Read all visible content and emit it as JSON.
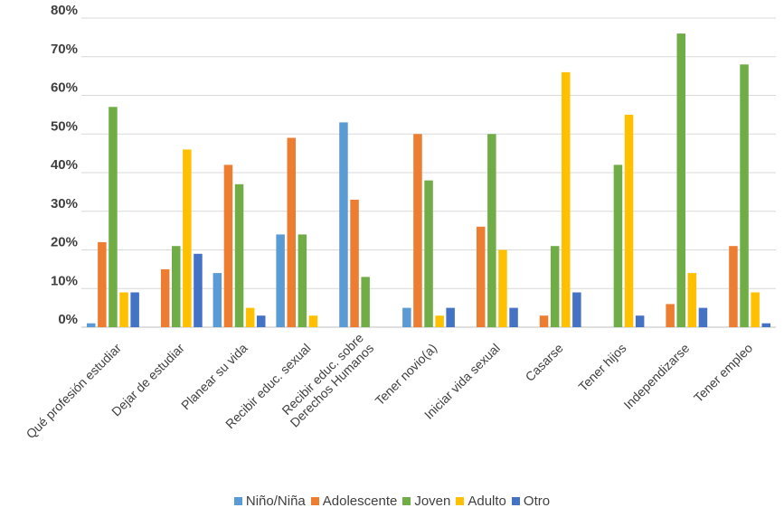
{
  "chart_data": {
    "type": "bar",
    "categories": [
      "Qué profesión estudiar",
      "Dejar de estudiar",
      "Planear su vida",
      "Recibir educ. sexual",
      "Recibir educ. sobre Derechos Humanos",
      "Tener novio(a)",
      "Iniciar vida sexual",
      "Casarse",
      "Tener hijos",
      "Independizarse",
      "Tener empleo"
    ],
    "category_lines": [
      [
        "Qué profesión estudiar"
      ],
      [
        "Dejar de estudiar"
      ],
      [
        "Planear su vida"
      ],
      [
        "Recibir educ. sexual"
      ],
      [
        "Recibir educ. sobre",
        "Derechos Humanos"
      ],
      [
        "Tener novio(a)"
      ],
      [
        "Iniciar vida sexual"
      ],
      [
        "Casarse"
      ],
      [
        "Tener hijos"
      ],
      [
        "Independizarse"
      ],
      [
        "Tener empleo"
      ]
    ],
    "series": [
      {
        "name": "Niño/Niña",
        "color": "#5B9BD5",
        "values": [
          1,
          0,
          14,
          24,
          53,
          5,
          0,
          0,
          0,
          0,
          0
        ]
      },
      {
        "name": "Adolescente",
        "color": "#ED7D31",
        "values": [
          22,
          15,
          42,
          49,
          33,
          50,
          26,
          3,
          0,
          6,
          21
        ]
      },
      {
        "name": "Joven",
        "color": "#70AD47",
        "values": [
          57,
          21,
          37,
          24,
          13,
          38,
          50,
          21,
          42,
          76,
          68
        ]
      },
      {
        "name": "Adulto",
        "color": "#FFC000",
        "values": [
          9,
          46,
          5,
          3,
          0,
          3,
          20,
          66,
          55,
          14,
          9
        ]
      },
      {
        "name": "Otro",
        "color": "#4472C4",
        "values": [
          9,
          19,
          3,
          0,
          0,
          5,
          5,
          9,
          3,
          5,
          1
        ]
      }
    ],
    "yticks": [
      "0%",
      "10%",
      "20%",
      "30%",
      "40%",
      "50%",
      "60%",
      "70%",
      "80%"
    ],
    "ylim": [
      0,
      80
    ],
    "grid": true,
    "legend_position": "bottom"
  }
}
